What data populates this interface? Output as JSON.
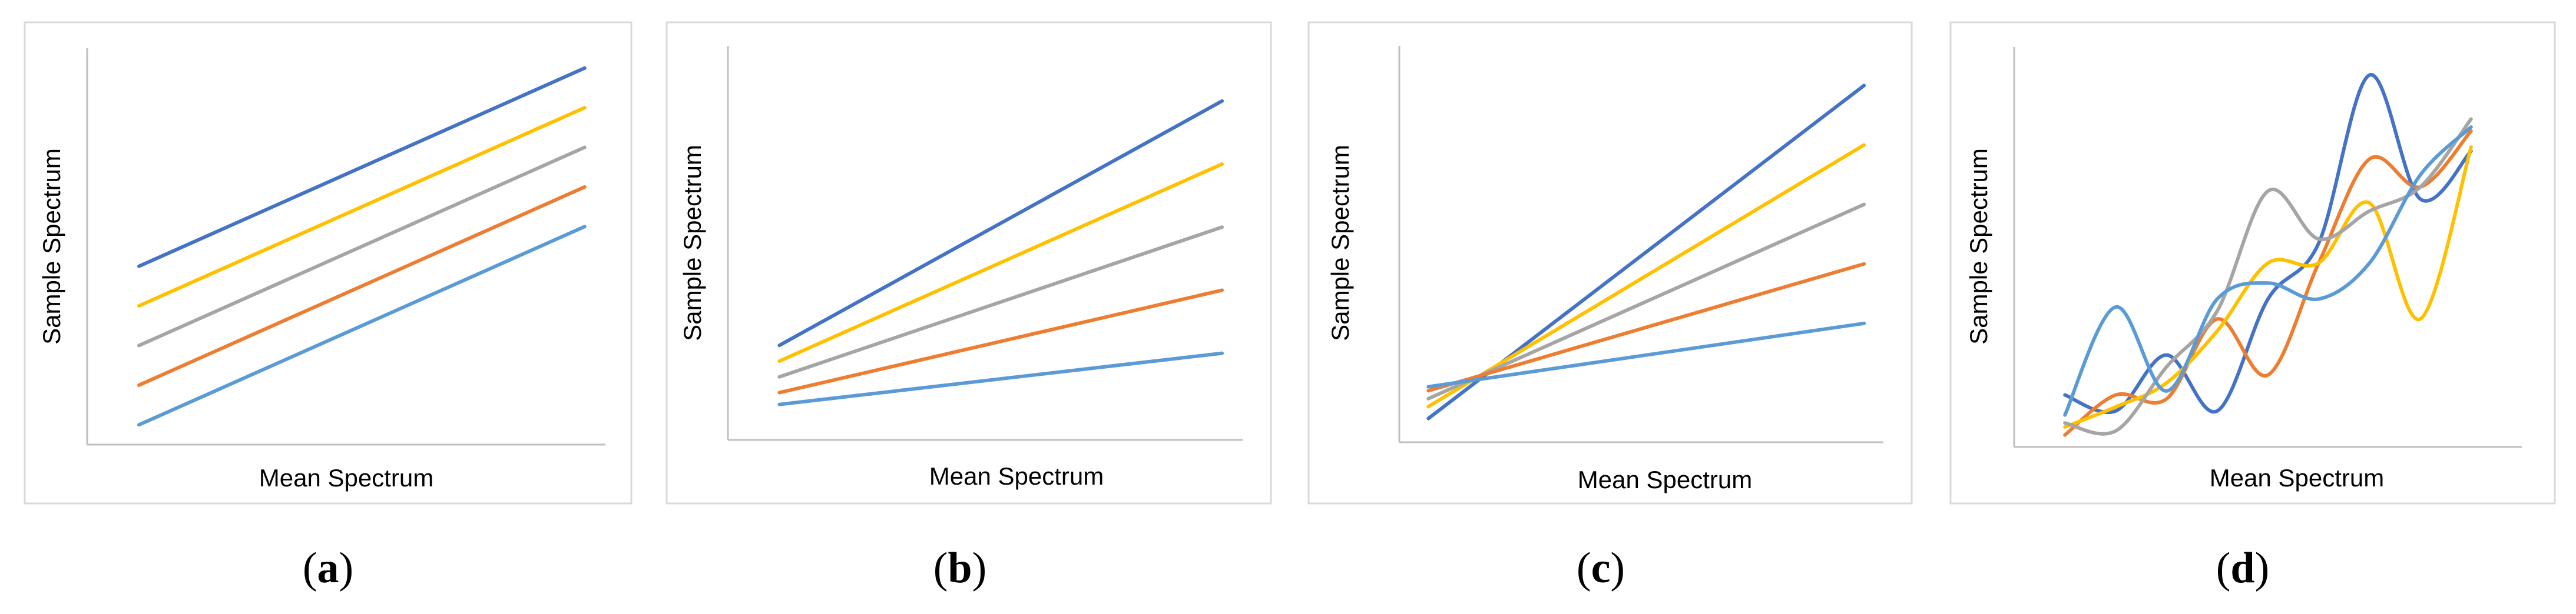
{
  "chart_data": [
    {
      "type": "line",
      "panel_label": "a",
      "xlabel": "Mean Spectrum",
      "ylabel": "Sample Spectrum",
      "xlim": [
        0,
        10
      ],
      "ylim": [
        0,
        10
      ],
      "grid": false,
      "legend": "none",
      "x": [
        1,
        9.6
      ],
      "series": [
        {
          "name": "dark-blue",
          "color": "#4472C4",
          "values": [
            4.5,
            9.5
          ]
        },
        {
          "name": "yellow",
          "color": "#FFC000",
          "values": [
            3.5,
            8.5
          ]
        },
        {
          "name": "gray",
          "color": "#A5A5A5",
          "values": [
            2.5,
            7.5
          ]
        },
        {
          "name": "orange",
          "color": "#ED7D31",
          "values": [
            1.5,
            6.5
          ]
        },
        {
          "name": "light-blue",
          "color": "#5B9BD5",
          "values": [
            0.5,
            5.5
          ]
        }
      ]
    },
    {
      "type": "line",
      "panel_label": "b",
      "xlabel": "Mean Spectrum",
      "ylabel": "Sample Spectrum",
      "xlim": [
        0,
        10
      ],
      "ylim": [
        0,
        10
      ],
      "grid": false,
      "legend": "none",
      "x": [
        1,
        9.6
      ],
      "series": [
        {
          "name": "dark-blue",
          "color": "#4472C4",
          "values": [
            2.4,
            8.6
          ]
        },
        {
          "name": "yellow",
          "color": "#FFC000",
          "values": [
            2.0,
            7.0
          ]
        },
        {
          "name": "gray",
          "color": "#A5A5A5",
          "values": [
            1.6,
            5.4
          ]
        },
        {
          "name": "orange",
          "color": "#ED7D31",
          "values": [
            1.2,
            3.8
          ]
        },
        {
          "name": "light-blue",
          "color": "#5B9BD5",
          "values": [
            0.9,
            2.2
          ]
        }
      ]
    },
    {
      "type": "line",
      "panel_label": "c",
      "xlabel": "Mean Spectrum",
      "ylabel": "Sample Spectrum",
      "xlim": [
        0,
        10
      ],
      "ylim": [
        0,
        10
      ],
      "grid": false,
      "legend": "none",
      "x": [
        0.6,
        9.6
      ],
      "series": [
        {
          "name": "dark-blue",
          "color": "#4472C4",
          "values": [
            0.6,
            9.0
          ]
        },
        {
          "name": "yellow",
          "color": "#FFC000",
          "values": [
            0.9,
            7.5
          ]
        },
        {
          "name": "gray",
          "color": "#A5A5A5",
          "values": [
            1.1,
            6.0
          ]
        },
        {
          "name": "orange",
          "color": "#ED7D31",
          "values": [
            1.3,
            4.5
          ]
        },
        {
          "name": "light-blue",
          "color": "#5B9BD5",
          "values": [
            1.4,
            3.0
          ]
        }
      ]
    },
    {
      "type": "line",
      "panel_label": "d",
      "xlabel": "Mean Spectrum",
      "ylabel": "Sample Spectrum",
      "xlim": [
        0,
        10
      ],
      "ylim": [
        0,
        10
      ],
      "grid": false,
      "legend": "none",
      "x": [
        1,
        2,
        3,
        4,
        5,
        6,
        7,
        8,
        9
      ],
      "series": [
        {
          "name": "dark-blue",
          "color": "#4472C4",
          "values": [
            1.3,
            0.9,
            2.3,
            0.9,
            3.7,
            5.1,
            9.3,
            6.2,
            7.4
          ]
        },
        {
          "name": "orange",
          "color": "#ED7D31",
          "values": [
            0.3,
            1.3,
            1.2,
            3.2,
            1.8,
            4.6,
            7.2,
            6.5,
            7.9
          ]
        },
        {
          "name": "yellow",
          "color": "#FFC000",
          "values": [
            0.5,
            1.0,
            1.6,
            2.9,
            4.6,
            4.6,
            6.1,
            3.2,
            7.5
          ]
        },
        {
          "name": "gray",
          "color": "#A5A5A5",
          "values": [
            0.6,
            0.4,
            2.0,
            3.4,
            6.4,
            5.2,
            5.9,
            6.5,
            8.2
          ]
        },
        {
          "name": "light-blue",
          "color": "#5B9BD5",
          "values": [
            0.8,
            3.5,
            1.4,
            3.7,
            4.1,
            3.7,
            4.6,
            6.8,
            8.0
          ]
        }
      ]
    }
  ]
}
